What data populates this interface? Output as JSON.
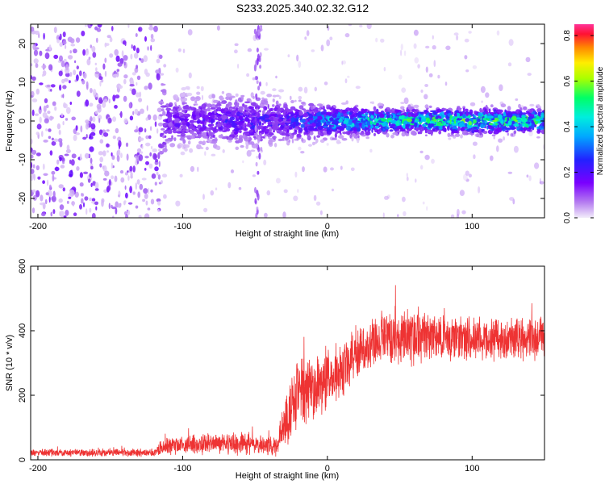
{
  "title": "S233.2025.340.02.32.G12",
  "chart_data": [
    {
      "type": "heatmap",
      "xlabel": "Height of straight line (km)",
      "ylabel": "Frequency (Hz)",
      "xlim": [
        -205,
        150
      ],
      "ylim": [
        -25,
        25
      ],
      "x_ticks": [
        -200,
        -100,
        0,
        100
      ],
      "y_ticks": [
        -20,
        -10,
        0,
        10,
        20
      ],
      "colorbar": {
        "label": "Normalized spectral amplitude",
        "range": [
          0,
          0.85
        ],
        "ticks": [
          0,
          0.2,
          0.4,
          0.6,
          0.8
        ],
        "colors": [
          "#e6d9f5",
          "#8a2be2",
          "#3333ff",
          "#00ccff",
          "#00ff88",
          "#aaff00",
          "#ffee00",
          "#ff8800",
          "#ff0033",
          "#ff66aa"
        ]
      },
      "profile": [
        {
          "x": -205,
          "level": 0.03,
          "spread": 25
        },
        {
          "x": -120,
          "level": 0.05,
          "spread": 25
        },
        {
          "x": -110,
          "level": 0.15,
          "spread": 6
        },
        {
          "x": -50,
          "level": 0.2,
          "spread": 6
        },
        {
          "x": -30,
          "level": 0.18,
          "spread": 5
        },
        {
          "x": 0,
          "level": 0.3,
          "spread": 4
        },
        {
          "x": 50,
          "level": 0.38,
          "spread": 3
        },
        {
          "x": 100,
          "level": 0.42,
          "spread": 3
        },
        {
          "x": 150,
          "level": 0.4,
          "spread": 3
        }
      ]
    },
    {
      "type": "line",
      "xlabel": "Height of straight line (km)",
      "ylabel": "SNR (10 * v/v)",
      "xlim": [
        -205,
        150
      ],
      "ylim": [
        0,
        600
      ],
      "x_ticks": [
        -200,
        -100,
        0,
        100
      ],
      "y_ticks": [
        0,
        200,
        400,
        600
      ],
      "color": "#ee3333",
      "series": [
        {
          "x": [
            -205,
            -120,
            -110,
            -60,
            -35,
            -25,
            -20,
            -5,
            10,
            20,
            30,
            50,
            100,
            150
          ],
          "y_mean": [
            22,
            22,
            45,
            50,
            40,
            180,
            200,
            230,
            280,
            330,
            360,
            380,
            375,
            375
          ],
          "y_spread": [
            12,
            12,
            30,
            35,
            30,
            120,
            120,
            110,
            90,
            80,
            80,
            90,
            70,
            70
          ]
        }
      ]
    }
  ]
}
